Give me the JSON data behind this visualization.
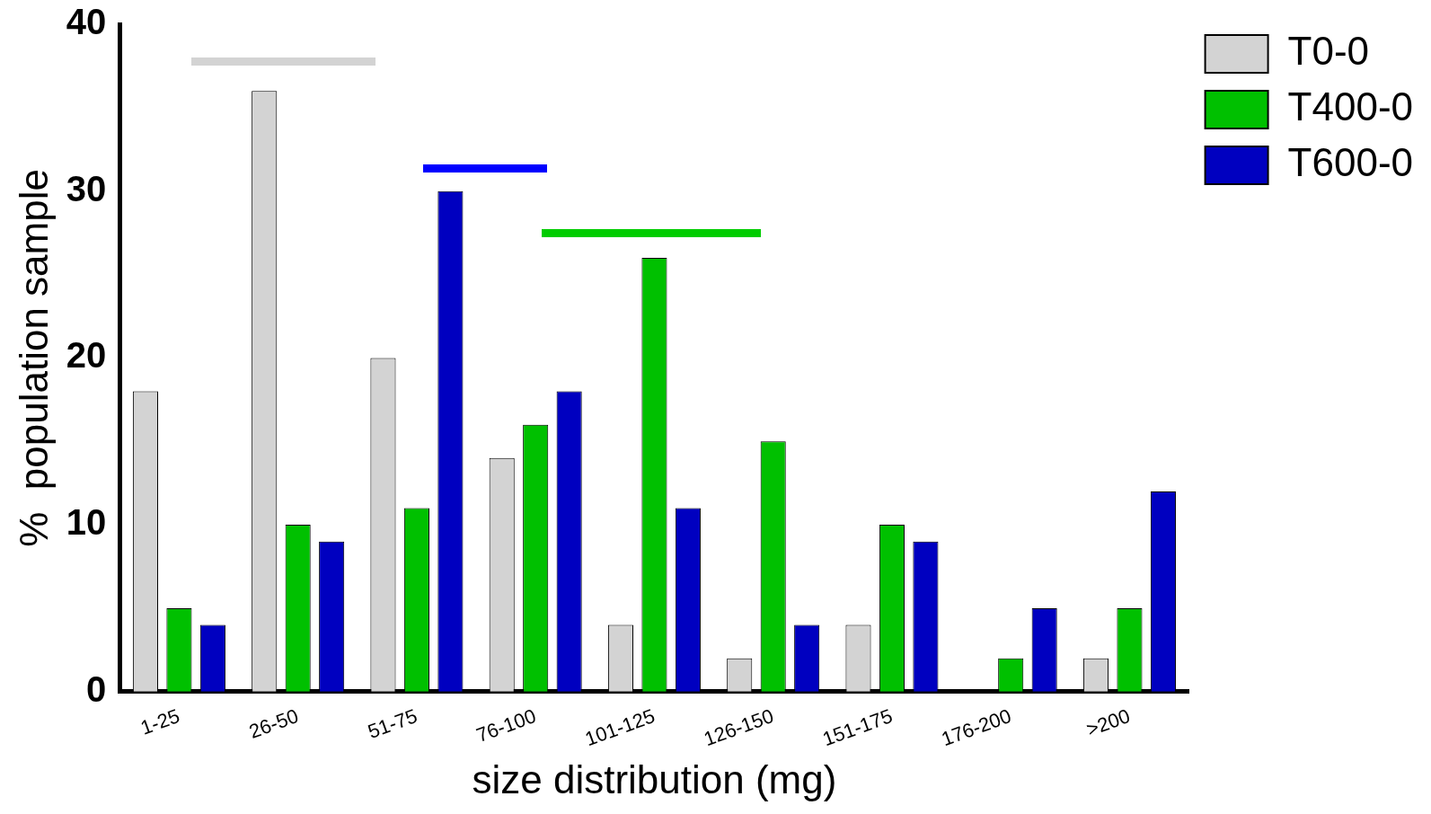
{
  "chart_data": {
    "type": "bar",
    "xlabel": "size distribution (mg)",
    "ylabel": "%  population sample",
    "categories": [
      "1-25",
      "26-50",
      "51-75",
      "76-100",
      "101-125",
      "126-150",
      "151-175",
      "176-200",
      ">200"
    ],
    "series": [
      {
        "name": "T0-0",
        "color": "#d3d3d3",
        "values": [
          18,
          36,
          20,
          14,
          4,
          2,
          4,
          0,
          2
        ]
      },
      {
        "name": "T400-0",
        "color": "#00c000",
        "values": [
          5,
          10,
          11,
          16,
          26,
          15,
          10,
          2,
          5
        ]
      },
      {
        "name": "T600-0",
        "color": "#0000c0",
        "values": [
          4,
          9,
          30,
          18,
          11,
          4,
          9,
          5,
          12
        ]
      }
    ],
    "ylim": [
      0,
      40
    ],
    "yticks": [
      0,
      10,
      20,
      30,
      40
    ],
    "grid": false,
    "legend": "right"
  }
}
